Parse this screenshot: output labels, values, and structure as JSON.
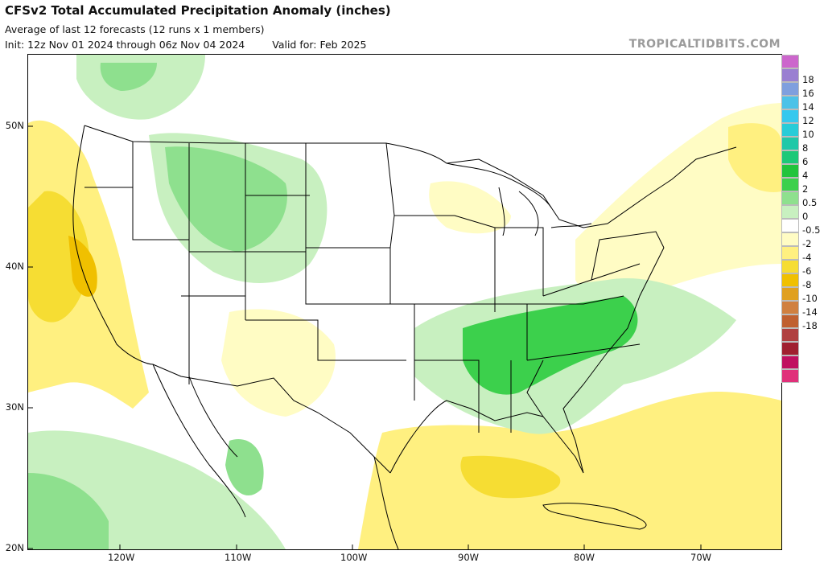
{
  "header": {
    "title": "CFSv2 Total Accumulated Precipitation Anomaly (inches)",
    "subtitle": "Average of last 12 forecasts (12 runs x 1 members)",
    "init": "Init: 12z Nov 01 2024 through 06z Nov 04 2024",
    "valid": "Valid for: Feb 2025",
    "brand": "TROPICALTIDBITS.COM"
  },
  "map": {
    "lat_labels": [
      "50N",
      "40N",
      "30N",
      "20N"
    ],
    "lon_labels": [
      "120W",
      "110W",
      "100W",
      "90W",
      "80W",
      "70W"
    ]
  },
  "colorbar": {
    "colors": [
      "#cc66cc",
      "#9a7fd1",
      "#7f9fde",
      "#4cc2e8",
      "#36c8ee",
      "#28ccd8",
      "#20c8a8",
      "#1ec878",
      "#22c43c",
      "#3cd04c",
      "#8ee08e",
      "#c8f0c0",
      "#ffffff",
      "#fffcc4",
      "#fff080",
      "#f6dd33",
      "#f0c000",
      "#e0a020",
      "#d08040",
      "#c06030",
      "#b04040",
      "#a02030",
      "#c01060",
      "#e0307a"
    ],
    "labels": [
      "18",
      "16",
      "14",
      "12",
      "10",
      "8",
      "6",
      "4",
      "2",
      "0.5",
      "0",
      "-0.5",
      "-2",
      "-4",
      "-6",
      "-8",
      "-10",
      "-14",
      "-18"
    ]
  }
}
